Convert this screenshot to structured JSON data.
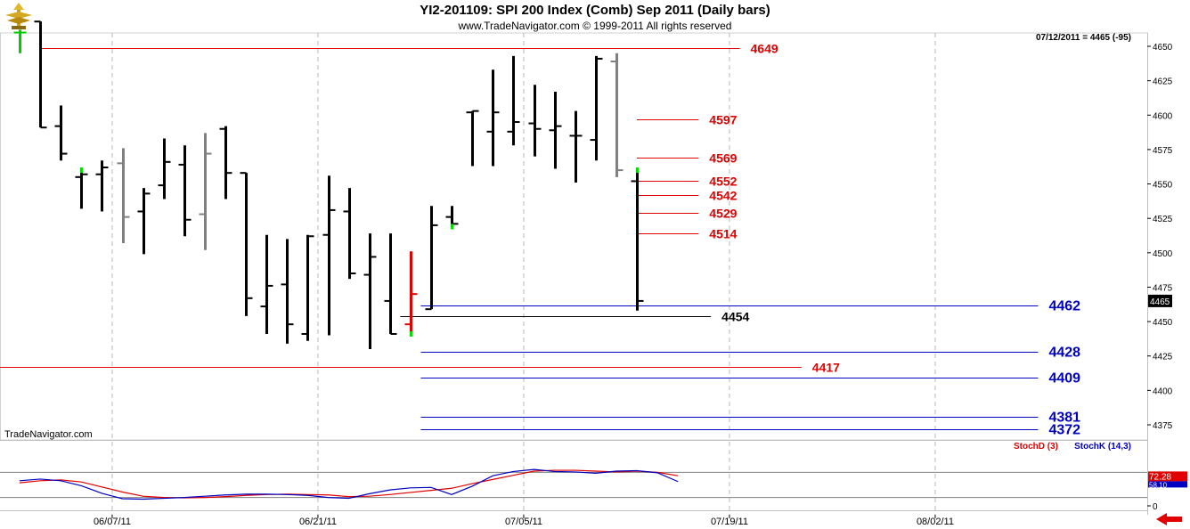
{
  "header": {
    "title": "YI2-201109:  SPI 200 Index (Comb) Sep 2011  (Daily bars)",
    "copyright": "www.TradeNavigator.com © 1999-2011 All rights reserved"
  },
  "icons": {
    "logo": "trade-navigator-gold-logo-icon",
    "scroll": "red-left-arrow-icon"
  },
  "colors": {
    "up_bar": "#000000",
    "gray_bar": "#808080",
    "red_level": "#e00000",
    "blue_level": "#0000c0",
    "black_level": "#000000",
    "stoch_d": "#e00000",
    "stoch_k": "#0000c0",
    "grid": "#b8b8b8"
  },
  "chart_data": [
    {
      "type": "ohlc",
      "watermark": "TradeNavigator.com",
      "readout": "07/12/2011 = 4465 (-95)",
      "last_price_tag": "4465",
      "ylim": [
        4355,
        4662
      ],
      "y_ticks": [
        4375,
        4400,
        4425,
        4450,
        4475,
        4500,
        4525,
        4550,
        4575,
        4600,
        4625,
        4650
      ],
      "x_ticks": [
        "06/07/11",
        "06/21/11",
        "07/05/11",
        "07/19/11",
        "08/02/11"
      ],
      "bars": [
        {
          "o": 4660,
          "h": 4662,
          "l": 4645,
          "c": 4660,
          "color": "green_tick"
        },
        {
          "o": 4668,
          "h": 4668,
          "l": 4591,
          "c": 4591
        },
        {
          "o": 4592,
          "h": 4607,
          "l": 4567,
          "c": 4572
        },
        {
          "o": 4555,
          "h": 4560,
          "l": 4532,
          "c": 4557,
          "tick": "green"
        },
        {
          "o": 4557,
          "h": 4567,
          "l": 4530,
          "c": 4562
        },
        {
          "o": 4565,
          "h": 4576,
          "l": 4507,
          "c": 4526,
          "color": "gray"
        },
        {
          "o": 4530,
          "h": 4547,
          "l": 4499,
          "c": 4543
        },
        {
          "o": 4549,
          "h": 4583,
          "l": 4539,
          "c": 4566
        },
        {
          "o": 4564,
          "h": 4578,
          "l": 4512,
          "c": 4524
        },
        {
          "o": 4528,
          "h": 4587,
          "l": 4502,
          "c": 4572,
          "color": "gray"
        },
        {
          "o": 4590,
          "h": 4592,
          "l": 4539,
          "c": 4558
        },
        {
          "o": 4558,
          "h": 4558,
          "l": 4454,
          "c": 4467
        },
        {
          "o": 4461,
          "h": 4513,
          "l": 4441,
          "c": 4476
        },
        {
          "o": 4477,
          "h": 4510,
          "l": 4434,
          "c": 4448
        },
        {
          "o": 4441,
          "h": 4513,
          "l": 4436,
          "c": 4512
        },
        {
          "o": 4513,
          "h": 4556,
          "l": 4440,
          "c": 4531
        },
        {
          "o": 4530,
          "h": 4547,
          "l": 4481,
          "c": 4485
        },
        {
          "o": 4484,
          "h": 4514,
          "l": 4430,
          "c": 4497
        },
        {
          "o": 4465,
          "h": 4514,
          "l": 4441,
          "c": 4441
        },
        {
          "o": 4448,
          "h": 4501,
          "l": 4441,
          "c": 4470,
          "color": "red",
          "tick": "green"
        },
        {
          "o": 4459,
          "h": 4534,
          "l": 4459,
          "c": 4520
        },
        {
          "o": 4526,
          "h": 4534,
          "l": 4519,
          "c": 4521,
          "tick": "green"
        },
        {
          "o": 4602,
          "h": 4603,
          "l": 4563,
          "c": 4603
        },
        {
          "o": 4588,
          "h": 4633,
          "l": 4563,
          "c": 4602
        },
        {
          "o": 4588,
          "h": 4643,
          "l": 4578,
          "c": 4595
        },
        {
          "o": 4594,
          "h": 4622,
          "l": 4570,
          "c": 4590
        },
        {
          "o": 4589,
          "h": 4617,
          "l": 4561,
          "c": 4592
        },
        {
          "o": 4585,
          "h": 4603,
          "l": 4551,
          "c": 4585
        },
        {
          "o": 4582,
          "h": 4643,
          "l": 4567,
          "c": 4641
        },
        {
          "o": 4639,
          "h": 4645,
          "l": 4555,
          "c": 4560,
          "color": "gray"
        },
        {
          "o": 4552,
          "h": 4560,
          "l": 4458,
          "c": 4465,
          "tick": "green"
        }
      ],
      "levels": [
        {
          "label": "4649",
          "value": 4649,
          "color": "red",
          "from": 1,
          "to": 35
        },
        {
          "label": "4597",
          "value": 4597,
          "color": "red",
          "from": 30,
          "to": 33
        },
        {
          "label": "4569",
          "value": 4569,
          "color": "red",
          "from": 30,
          "to": 33
        },
        {
          "label": "4552",
          "value": 4552,
          "color": "red",
          "from": 30,
          "to": 33
        },
        {
          "label": "4542",
          "value": 4542,
          "color": "red",
          "from": 30,
          "to": 33
        },
        {
          "label": "4529",
          "value": 4529,
          "color": "red",
          "from": 30,
          "to": 33
        },
        {
          "label": "4514",
          "value": 4514,
          "color": "red",
          "from": 30,
          "to": 33
        },
        {
          "label": "4462",
          "value": 4462,
          "color": "blue",
          "from": 19.5,
          "to": 49.5
        },
        {
          "label": "4454",
          "value": 4454,
          "color": "black",
          "from": 18.5,
          "to": 33.6
        },
        {
          "label": "4428",
          "value": 4428,
          "color": "blue",
          "from": 19.5,
          "to": 49.5
        },
        {
          "label": "4417",
          "value": 4417,
          "color": "red",
          "from": -1,
          "to": 38
        },
        {
          "label": "4409",
          "value": 4409,
          "color": "blue",
          "from": 19.5,
          "to": 49.5
        },
        {
          "label": "4381",
          "value": 4381,
          "color": "blue",
          "from": 19.5,
          "to": 49.5
        },
        {
          "label": "4372",
          "value": 4372,
          "color": "blue",
          "from": 19.5,
          "to": 49.5
        }
      ]
    },
    {
      "type": "line",
      "legend": [
        "StochD (3)",
        "StochK (14,3)"
      ],
      "y_ticks": [
        0
      ],
      "ylim": [
        0,
        100
      ],
      "reference_lines": [
        20,
        80
      ],
      "value_tags": [
        "72.28",
        "58.10"
      ],
      "series": [
        {
          "name": "StochD (3)",
          "color": "red",
          "values": [
            55,
            60,
            62,
            57,
            45,
            33,
            23,
            20,
            19,
            20,
            22,
            25,
            27,
            28,
            27,
            26,
            22,
            23,
            27,
            32,
            37,
            42,
            53,
            63,
            73,
            83,
            85,
            85,
            83,
            81,
            83,
            80,
            72
          ]
        },
        {
          "name": "StochK (14,3)",
          "color": "blue",
          "values": [
            60,
            64,
            60,
            48,
            30,
            17,
            16,
            18,
            20,
            23,
            26,
            28,
            28,
            27,
            25,
            20,
            18,
            29,
            38,
            43,
            44,
            27,
            47,
            72,
            82,
            87,
            82,
            81,
            78,
            83,
            84,
            79,
            58
          ]
        }
      ]
    }
  ]
}
